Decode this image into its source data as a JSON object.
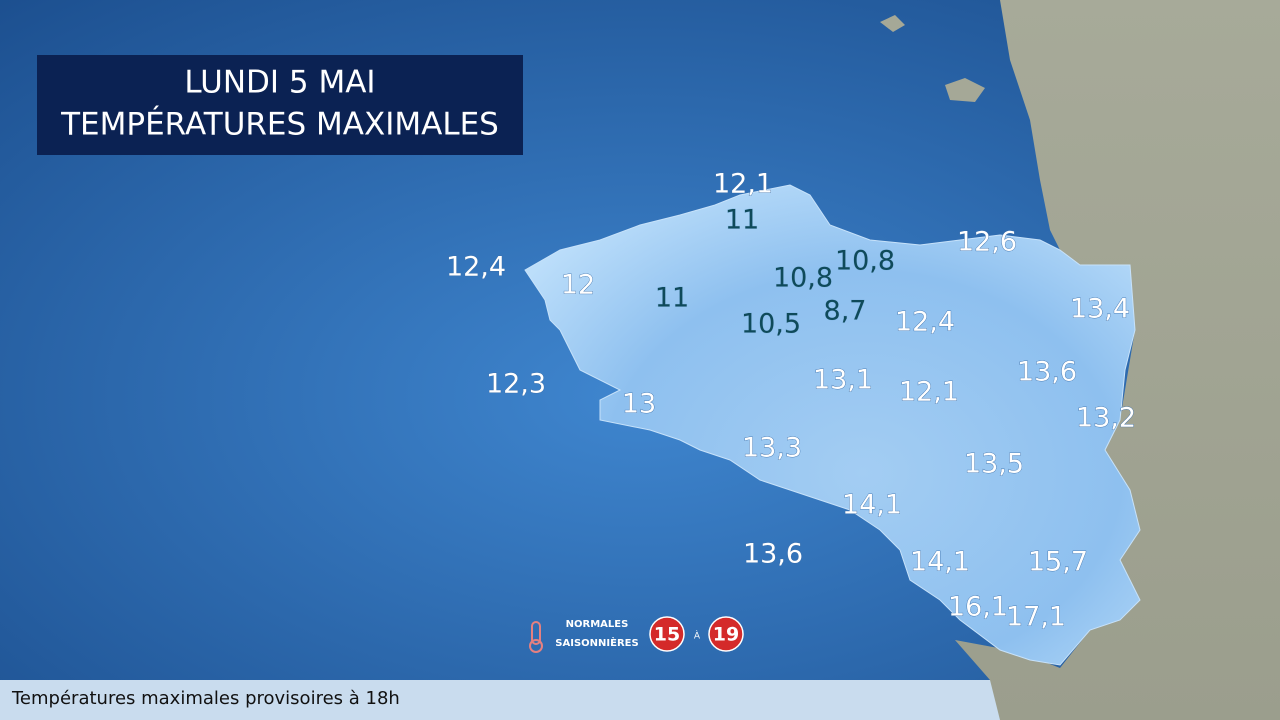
{
  "header": {
    "title_lines": [
      "LUNDI 5 MAI",
      "TEMPÉRATURES MAXIMALES"
    ]
  },
  "temperatures": {
    "light": [
      "12,1",
      "12,4",
      "12",
      "12,3",
      "13",
      "12,6",
      "13,4",
      "12,4",
      "13,1",
      "12,1",
      "13,6",
      "13,2",
      "13,3",
      "13,5",
      "14,1",
      "13,6",
      "14,1",
      "15,7",
      "16,1",
      "17,1"
    ],
    "dark": [
      "11",
      "11",
      "10,8",
      "10,8",
      "8,7",
      "10,5"
    ]
  },
  "legend": {
    "label_lines": [
      "NORMALES",
      "SAISONNIÈRES"
    ],
    "low": "15",
    "separator": "À",
    "high": "19"
  },
  "footer": "Températures maximales provisoires à 18h"
}
